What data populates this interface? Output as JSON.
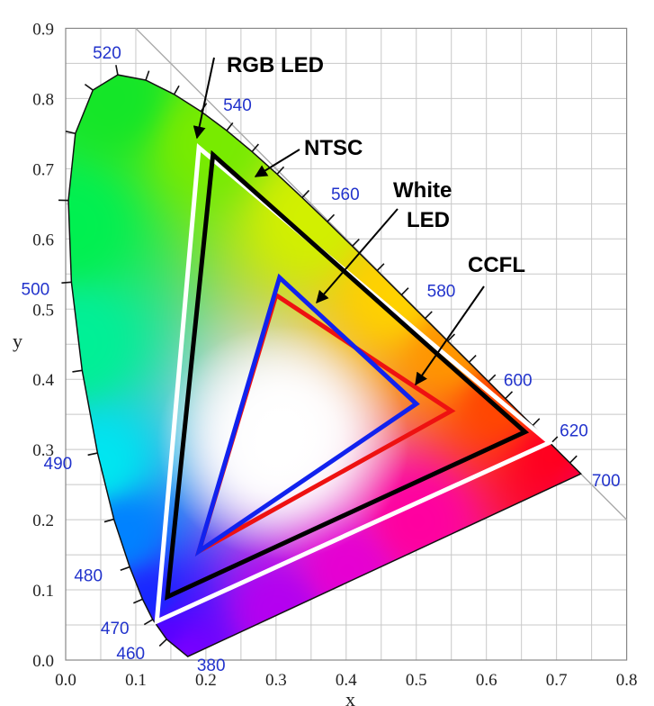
{
  "chart_data": {
    "type": "scatter",
    "title": "",
    "xlabel": "x",
    "ylabel": "y",
    "xlim": [
      0.0,
      0.8
    ],
    "ylim": [
      0.0,
      0.9
    ],
    "grid": true,
    "x_ticks": [
      "0.0",
      "0.1",
      "0.2",
      "0.3",
      "0.4",
      "0.5",
      "0.6",
      "0.7",
      "0.8"
    ],
    "y_ticks": [
      "0.0",
      "0.1",
      "0.2",
      "0.3",
      "0.4",
      "0.5",
      "0.6",
      "0.7",
      "0.8",
      "0.9"
    ],
    "spectral_locus": [
      {
        "nm": 380,
        "x": 0.1741,
        "y": 0.005
      },
      {
        "nm": 460,
        "x": 0.144,
        "y": 0.0297
      },
      {
        "nm": 470,
        "x": 0.1241,
        "y": 0.0578
      },
      {
        "nm": 475,
        "x": 0.1096,
        "y": 0.0868
      },
      {
        "nm": 480,
        "x": 0.0913,
        "y": 0.1327
      },
      {
        "nm": 485,
        "x": 0.0687,
        "y": 0.2007
      },
      {
        "nm": 490,
        "x": 0.0454,
        "y": 0.295
      },
      {
        "nm": 495,
        "x": 0.0235,
        "y": 0.4127
      },
      {
        "nm": 500,
        "x": 0.0082,
        "y": 0.5384
      },
      {
        "nm": 505,
        "x": 0.0039,
        "y": 0.6548
      },
      {
        "nm": 510,
        "x": 0.0139,
        "y": 0.7502
      },
      {
        "nm": 515,
        "x": 0.0389,
        "y": 0.812
      },
      {
        "nm": 520,
        "x": 0.0743,
        "y": 0.8338
      },
      {
        "nm": 525,
        "x": 0.1142,
        "y": 0.8262
      },
      {
        "nm": 530,
        "x": 0.1547,
        "y": 0.8059
      },
      {
        "nm": 535,
        "x": 0.1929,
        "y": 0.7816
      },
      {
        "nm": 540,
        "x": 0.2296,
        "y": 0.7543
      },
      {
        "nm": 545,
        "x": 0.2658,
        "y": 0.7243
      },
      {
        "nm": 550,
        "x": 0.3016,
        "y": 0.6923
      },
      {
        "nm": 555,
        "x": 0.3373,
        "y": 0.6589
      },
      {
        "nm": 560,
        "x": 0.3731,
        "y": 0.6245
      },
      {
        "nm": 565,
        "x": 0.4087,
        "y": 0.5896
      },
      {
        "nm": 570,
        "x": 0.4441,
        "y": 0.5547
      },
      {
        "nm": 575,
        "x": 0.4788,
        "y": 0.5202
      },
      {
        "nm": 580,
        "x": 0.5125,
        "y": 0.4866
      },
      {
        "nm": 585,
        "x": 0.5448,
        "y": 0.4544
      },
      {
        "nm": 590,
        "x": 0.5752,
        "y": 0.4242
      },
      {
        "nm": 595,
        "x": 0.6029,
        "y": 0.3965
      },
      {
        "nm": 600,
        "x": 0.627,
        "y": 0.3725
      },
      {
        "nm": 610,
        "x": 0.6658,
        "y": 0.334
      },
      {
        "nm": 620,
        "x": 0.6915,
        "y": 0.3083
      },
      {
        "nm": 640,
        "x": 0.719,
        "y": 0.2809
      },
      {
        "nm": 700,
        "x": 0.7347,
        "y": 0.2653
      }
    ],
    "wavelength_labels": [
      {
        "label": "520",
        "nm": 520
      },
      {
        "label": "540",
        "nm": 540
      },
      {
        "label": "560",
        "nm": 560
      },
      {
        "label": "580",
        "nm": 580
      },
      {
        "label": "600",
        "nm": 600
      },
      {
        "label": "620",
        "nm": 620
      },
      {
        "label": "700",
        "nm": 700
      },
      {
        "label": "500",
        "nm": 500
      },
      {
        "label": "490",
        "nm": 490
      },
      {
        "label": "480",
        "nm": 480
      },
      {
        "label": "470",
        "nm": 470
      },
      {
        "label": "460",
        "nm": 460
      },
      {
        "label": "380",
        "nm": 380
      }
    ],
    "series": [
      {
        "name": "RGB LED",
        "color": "#ffffff",
        "points": [
          [
            0.19,
            0.73
          ],
          [
            0.69,
            0.31
          ],
          [
            0.13,
            0.055
          ]
        ]
      },
      {
        "name": "NTSC",
        "color": "#000000",
        "points": [
          [
            0.21,
            0.72
          ],
          [
            0.655,
            0.325
          ],
          [
            0.145,
            0.09
          ]
        ]
      },
      {
        "name": "CCFL",
        "color": "#ee1111",
        "points": [
          [
            0.3,
            0.52
          ],
          [
            0.55,
            0.355
          ],
          [
            0.19,
            0.155
          ]
        ]
      },
      {
        "name": "White LED",
        "color": "#1122ee",
        "points": [
          [
            0.305,
            0.545
          ],
          [
            0.5,
            0.365
          ],
          [
            0.19,
            0.155
          ]
        ]
      }
    ],
    "annotations": [
      {
        "text": "RGB LED"
      },
      {
        "text": "NTSC"
      },
      {
        "text": "White LED"
      },
      {
        "text": "CCFL"
      }
    ]
  }
}
